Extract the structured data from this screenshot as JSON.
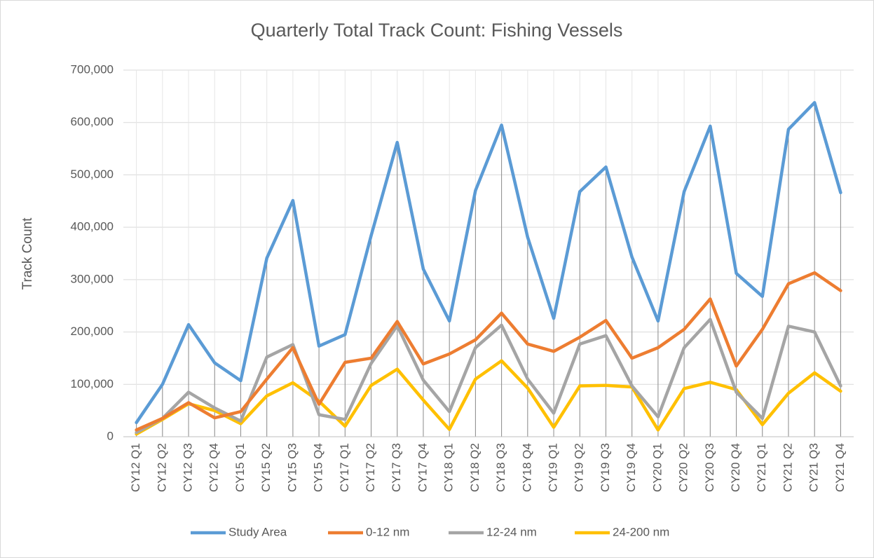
{
  "chart_data": {
    "type": "line",
    "title": "Quarterly Total Track Count: Fishing Vessels",
    "y_label": "Track Count",
    "categories": [
      "CY12 Q1",
      "CY12 Q2",
      "CY12 Q3",
      "CY12 Q4",
      "CY15 Q1",
      "CY15 Q2",
      "CY15 Q3",
      "CY15 Q4",
      "CY17 Q1",
      "CY17 Q2",
      "CY17 Q3",
      "CY17 Q4",
      "CY18 Q1",
      "CY18 Q2",
      "CY18 Q3",
      "CY18 Q4",
      "CY19 Q1",
      "CY19 Q2",
      "CY19 Q3",
      "CY19 Q4",
      "CY20 Q1",
      "CY20 Q2",
      "CY20 Q3",
      "CY20 Q4",
      "CY21 Q1",
      "CY21 Q2",
      "CY21 Q3",
      "CY21 Q4"
    ],
    "series": [
      {
        "name": "Study Area",
        "color": "#5b9bd5",
        "values": [
          27000,
          100000,
          214000,
          141000,
          107000,
          341000,
          451000,
          173000,
          195000,
          384000,
          562000,
          320000,
          221000,
          470000,
          595000,
          381000,
          226000,
          468000,
          515000,
          343000,
          221000,
          468000,
          593000,
          312000,
          268000,
          587000,
          638000,
          466000
        ]
      },
      {
        "name": "0-12 nm",
        "color": "#ed7d31",
        "values": [
          13000,
          35000,
          65000,
          36000,
          48000,
          110000,
          170000,
          62000,
          142000,
          150000,
          220000,
          139000,
          158000,
          185000,
          236000,
          177000,
          163000,
          190000,
          222000,
          150000,
          170000,
          205000,
          263000,
          135000,
          205000,
          292000,
          313000,
          279000
        ]
      },
      {
        "name": "12-24 nm",
        "color": "#a5a5a5",
        "values": [
          8000,
          35000,
          85000,
          55000,
          30000,
          152000,
          176000,
          42000,
          33000,
          140000,
          212000,
          108000,
          48000,
          170000,
          213000,
          110000,
          45000,
          177000,
          193000,
          97000,
          38000,
          170000,
          224000,
          85000,
          35000,
          211000,
          200000,
          97000
        ]
      },
      {
        "name": "24-200 nm",
        "color": "#ffc000",
        "values": [
          5000,
          33000,
          63000,
          50000,
          25000,
          78000,
          103000,
          68000,
          20000,
          98000,
          129000,
          70000,
          14000,
          110000,
          145000,
          93000,
          18000,
          97000,
          98000,
          95000,
          13000,
          92000,
          104000,
          90000,
          23000,
          83000,
          122000,
          87000
        ]
      }
    ],
    "ylim": [
      0,
      700000
    ],
    "yticks": [
      0,
      {
        "value": 100000,
        "label": "100,000"
      },
      {
        "value": 200000,
        "label": "200,000"
      },
      {
        "value": 300000,
        "label": "300,000"
      },
      {
        "value": 400000,
        "label": "400,000"
      },
      {
        "value": 500000,
        "label": "500,000"
      },
      {
        "value": 600000,
        "label": "600,000"
      },
      {
        "value": 700000,
        "label": "700,000"
      }
    ],
    "grid": true,
    "legend": "bottom"
  }
}
